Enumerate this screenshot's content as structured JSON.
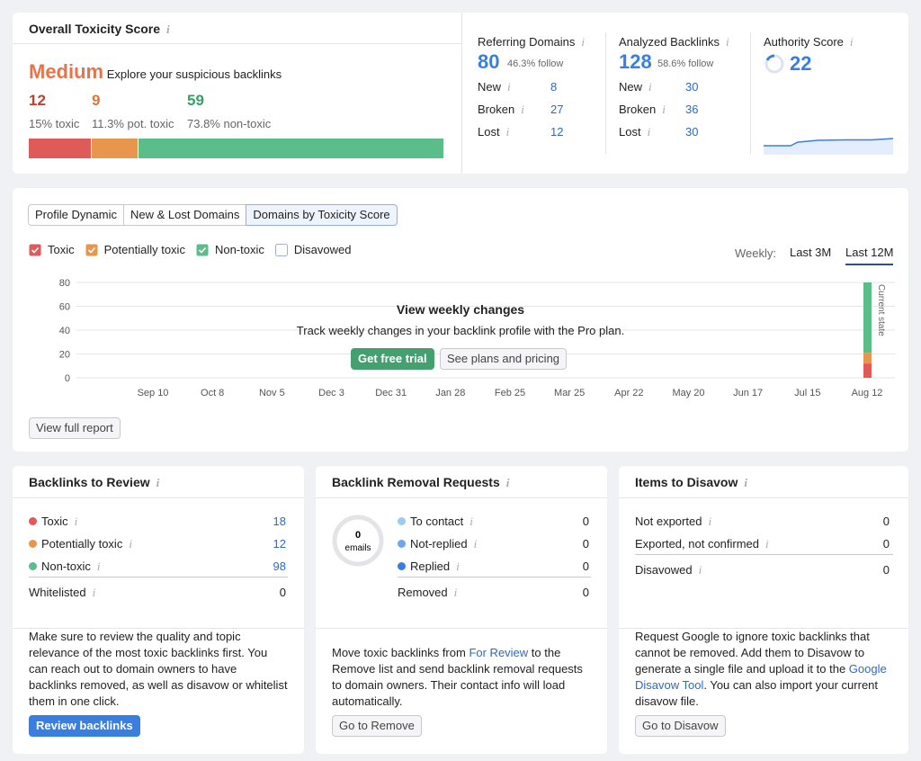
{
  "toxicity": {
    "title": "Overall Toxicity Score",
    "level": "Medium",
    "level_text": "Explore your suspicious backlinks",
    "stats": [
      {
        "value": 12,
        "label": "15% toxic"
      },
      {
        "value": 9,
        "label": "11.3% pot. toxic"
      },
      {
        "value": 59,
        "label": "73.8% non-toxic"
      }
    ]
  },
  "referring": {
    "title": "Referring Domains",
    "value": 80,
    "sub": "46.3% follow",
    "rows": [
      {
        "label": "New",
        "value": 8
      },
      {
        "label": "Broken",
        "value": 27
      },
      {
        "label": "Lost",
        "value": 12
      }
    ]
  },
  "backlinks": {
    "title": "Analyzed Backlinks",
    "value": 128,
    "sub": "58.6% follow",
    "rows": [
      {
        "label": "New",
        "value": 30
      },
      {
        "label": "Broken",
        "value": 36
      },
      {
        "label": "Lost",
        "value": 30
      }
    ]
  },
  "authority": {
    "title": "Authority Score",
    "value": 22
  },
  "tabs": [
    "Profile Dynamic",
    "New & Lost Domains",
    "Domains by Toxicity Score"
  ],
  "legend": [
    "Toxic",
    "Potentially toxic",
    "Non-toxic",
    "Disavowed"
  ],
  "period": {
    "label": "Weekly:",
    "options": [
      "Last 3M",
      "Last 12M"
    ]
  },
  "chart": {
    "ylim": [
      0,
      80
    ],
    "yticks": [
      0,
      20,
      40,
      60,
      80
    ],
    "categories": [
      "Sep 10",
      "Oct 8",
      "Nov 5",
      "Dec 3",
      "Dec 31",
      "Jan 28",
      "Feb 25",
      "Mar 25",
      "Apr 22",
      "May 20",
      "Jun 17",
      "Jul 15",
      "Aug 12"
    ],
    "current_label": "Current state"
  },
  "overlay": {
    "title": "View weekly changes",
    "text": "Track weekly changes in your backlink profile with the Pro plan.",
    "primary": "Get free trial",
    "secondary": "See plans and pricing"
  },
  "view_full_report": "View full report",
  "review": {
    "title": "Backlinks to Review",
    "rows": [
      {
        "label": "Toxic",
        "value": 18
      },
      {
        "label": "Potentially toxic",
        "value": 12
      },
      {
        "label": "Non-toxic",
        "value": 98
      }
    ],
    "extra": [
      {
        "label": "Whitelisted",
        "value": 0
      }
    ],
    "text": [
      "Make sure to review the quality and topic relevance of the most toxic backlinks first. You can reach out to domain owners to have backlinks removed, as well as disavow or whitelist them in one click."
    ],
    "button": "Review backlinks"
  },
  "removal": {
    "title": "Backlink Removal Requests",
    "donut_value": 0,
    "donut_label": "emails",
    "rows": [
      {
        "label": "To contact",
        "value": 0
      },
      {
        "label": "Not-replied",
        "value": 0
      },
      {
        "label": "Replied",
        "value": 0
      }
    ],
    "extra": [
      {
        "label": "Removed",
        "value": 0
      }
    ],
    "text": [
      "Move toxic backlinks from ",
      "For Review",
      " to the Remove list and send backlink removal requests to domain owners. Their contact info will load automatically."
    ],
    "button": "Go to Remove"
  },
  "disavow": {
    "title": "Items to Disavow",
    "rows": [
      {
        "label": "Not exported",
        "value": 0
      },
      {
        "label": "Exported, not confirmed",
        "value": 0
      }
    ],
    "extra": [
      {
        "label": "Disavowed",
        "value": 0
      }
    ],
    "text": [
      "Request Google to ignore toxic backlinks that cannot be removed. Add them to Disavow to generate a single file and upload it to the ",
      "Google Disavow Tool",
      ". You can also import your current disavow file."
    ],
    "button": "Go to Disavow"
  }
}
